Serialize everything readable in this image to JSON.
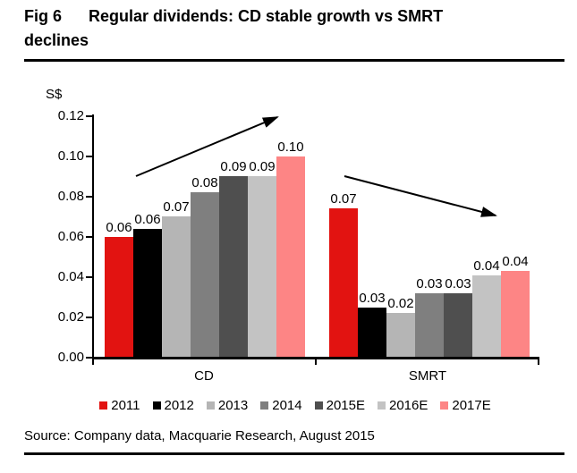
{
  "figure": {
    "label": "Fig 6",
    "title": "Regular dividends: CD stable growth vs SMRT declines",
    "title_lines": [
      "Regular dividends: CD stable growth vs SMRT",
      "declines"
    ],
    "source": "Source: Company data, Macquarie Research, August 2015"
  },
  "chart_data": {
    "type": "bar",
    "title": "Regular dividends: CD stable growth vs SMRT declines",
    "unit_label": "S$",
    "categories": [
      "CD",
      "SMRT"
    ],
    "series": [
      {
        "name": "2011",
        "color": "#e21311",
        "values": [
          0.06,
          0.074
        ],
        "labels": [
          "0.06",
          "0.07"
        ]
      },
      {
        "name": "2012",
        "color": "#000000",
        "values": [
          0.064,
          0.025
        ],
        "labels": [
          "0.06",
          "0.03"
        ]
      },
      {
        "name": "2013",
        "color": "#b5b5b5",
        "values": [
          0.07,
          0.022
        ],
        "labels": [
          "0.07",
          "0.02"
        ]
      },
      {
        "name": "2014",
        "color": "#7f7f7f",
        "values": [
          0.082,
          0.032
        ],
        "labels": [
          "0.08",
          "0.03"
        ]
      },
      {
        "name": "2015E",
        "color": "#4f4f4f",
        "values": [
          0.09,
          0.032
        ],
        "labels": [
          "0.09",
          "0.03"
        ]
      },
      {
        "name": "2016E",
        "color": "#c3c3c3",
        "values": [
          0.09,
          0.041
        ],
        "labels": [
          "0.09",
          "0.04"
        ]
      },
      {
        "name": "2017E",
        "color": "#fd8585",
        "values": [
          0.1,
          0.043
        ],
        "labels": [
          "0.10",
          "0.04"
        ]
      }
    ],
    "ylim": [
      0,
      0.12
    ],
    "yticks": [
      "0.00",
      "0.02",
      "0.04",
      "0.06",
      "0.08",
      "0.10",
      "0.12"
    ],
    "grid": false,
    "legend_position": "bottom",
    "annotations": [
      {
        "target": "CD",
        "type": "trend-arrow",
        "direction": "up"
      },
      {
        "target": "SMRT",
        "type": "trend-arrow",
        "direction": "down"
      }
    ]
  }
}
